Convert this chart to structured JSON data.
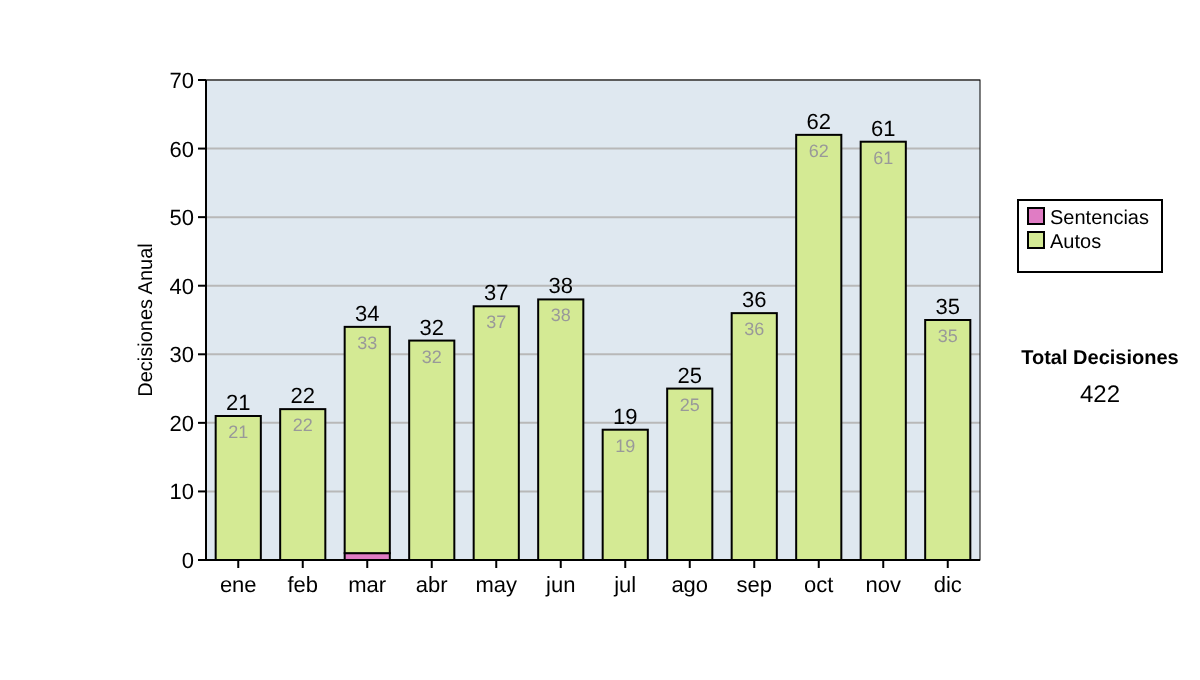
{
  "chart_data": {
    "type": "bar",
    "stacked": true,
    "ylabel": "Decisiones Anual",
    "categories": [
      "ene",
      "feb",
      "mar",
      "abr",
      "may",
      "jun",
      "jul",
      "ago",
      "sep",
      "oct",
      "nov",
      "dic"
    ],
    "series": [
      {
        "name": "Sentencias",
        "color": "#e07cc4",
        "values": [
          0,
          0,
          1,
          0,
          0,
          0,
          0,
          0,
          0,
          0,
          0,
          0
        ]
      },
      {
        "name": "Autos",
        "color": "#d4ea94",
        "values": [
          21,
          22,
          33,
          32,
          37,
          38,
          19,
          25,
          36,
          62,
          61,
          35
        ],
        "value_labels": [
          "21",
          "22",
          "33",
          "32",
          "37",
          "38",
          "19",
          "25",
          "36",
          "62",
          "61",
          "35"
        ]
      }
    ],
    "totals": [
      "21",
      "22",
      "34",
      "32",
      "37",
      "38",
      "19",
      "25",
      "36",
      "62",
      "61",
      "35"
    ],
    "ylim": [
      0,
      70
    ],
    "yticks": [
      0,
      10,
      20,
      30,
      40,
      50,
      60,
      70
    ],
    "grid": "y",
    "legend": "right",
    "annotations": [
      "Total Decisiones",
      "422"
    ]
  }
}
